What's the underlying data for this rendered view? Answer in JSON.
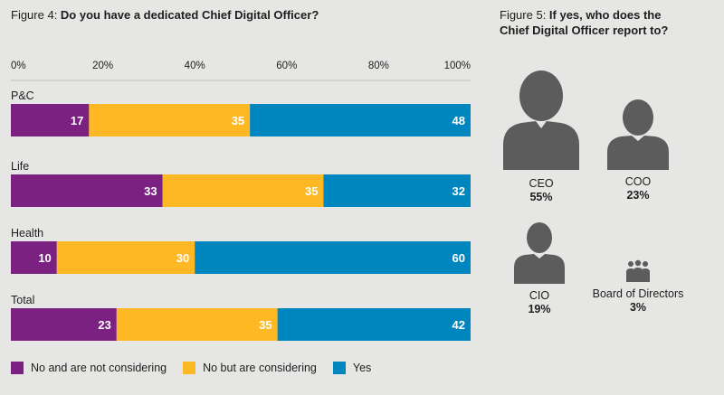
{
  "figure4": {
    "prefix": "Figure 4: ",
    "question": "Do you have a dedicated Chief Digital Officer?"
  },
  "figure5": {
    "prefix": "Figure 5: ",
    "question_line1": "If yes, who does the",
    "question_line2": "Chief Digital Officer report to?",
    "items": [
      {
        "role": "CEO",
        "value": "55%",
        "icon": "person-large-icon"
      },
      {
        "role": "COO",
        "value": "23%",
        "icon": "person-medium-icon"
      },
      {
        "role": "CIO",
        "value": "19%",
        "icon": "person-medium-icon"
      },
      {
        "role": "Board of Directors",
        "value": "3%",
        "icon": "group-of-people-icon"
      }
    ]
  },
  "chart_data": {
    "type": "bar",
    "orientation": "horizontal-stacked",
    "title": "Do you have a dedicated Chief Digital Officer?",
    "categories": [
      "P&C",
      "Life",
      "Health",
      "Total"
    ],
    "x_ticks": [
      "0%",
      "20%",
      "40%",
      "60%",
      "80%",
      "100%"
    ],
    "xlim": [
      0,
      100
    ],
    "grid": false,
    "legend_position": "bottom",
    "series": [
      {
        "name": "No and are not considering",
        "color": "#7b2181",
        "values": [
          17,
          33,
          10,
          23
        ]
      },
      {
        "name": "No but are considering",
        "color": "#fdb824",
        "values": [
          35,
          35,
          30,
          35
        ]
      },
      {
        "name": "Yes",
        "color": "#0086be",
        "values": [
          48,
          32,
          60,
          42
        ]
      }
    ]
  },
  "colors": {
    "background": "#e6e6e4",
    "icon": "#5c5c5c"
  }
}
